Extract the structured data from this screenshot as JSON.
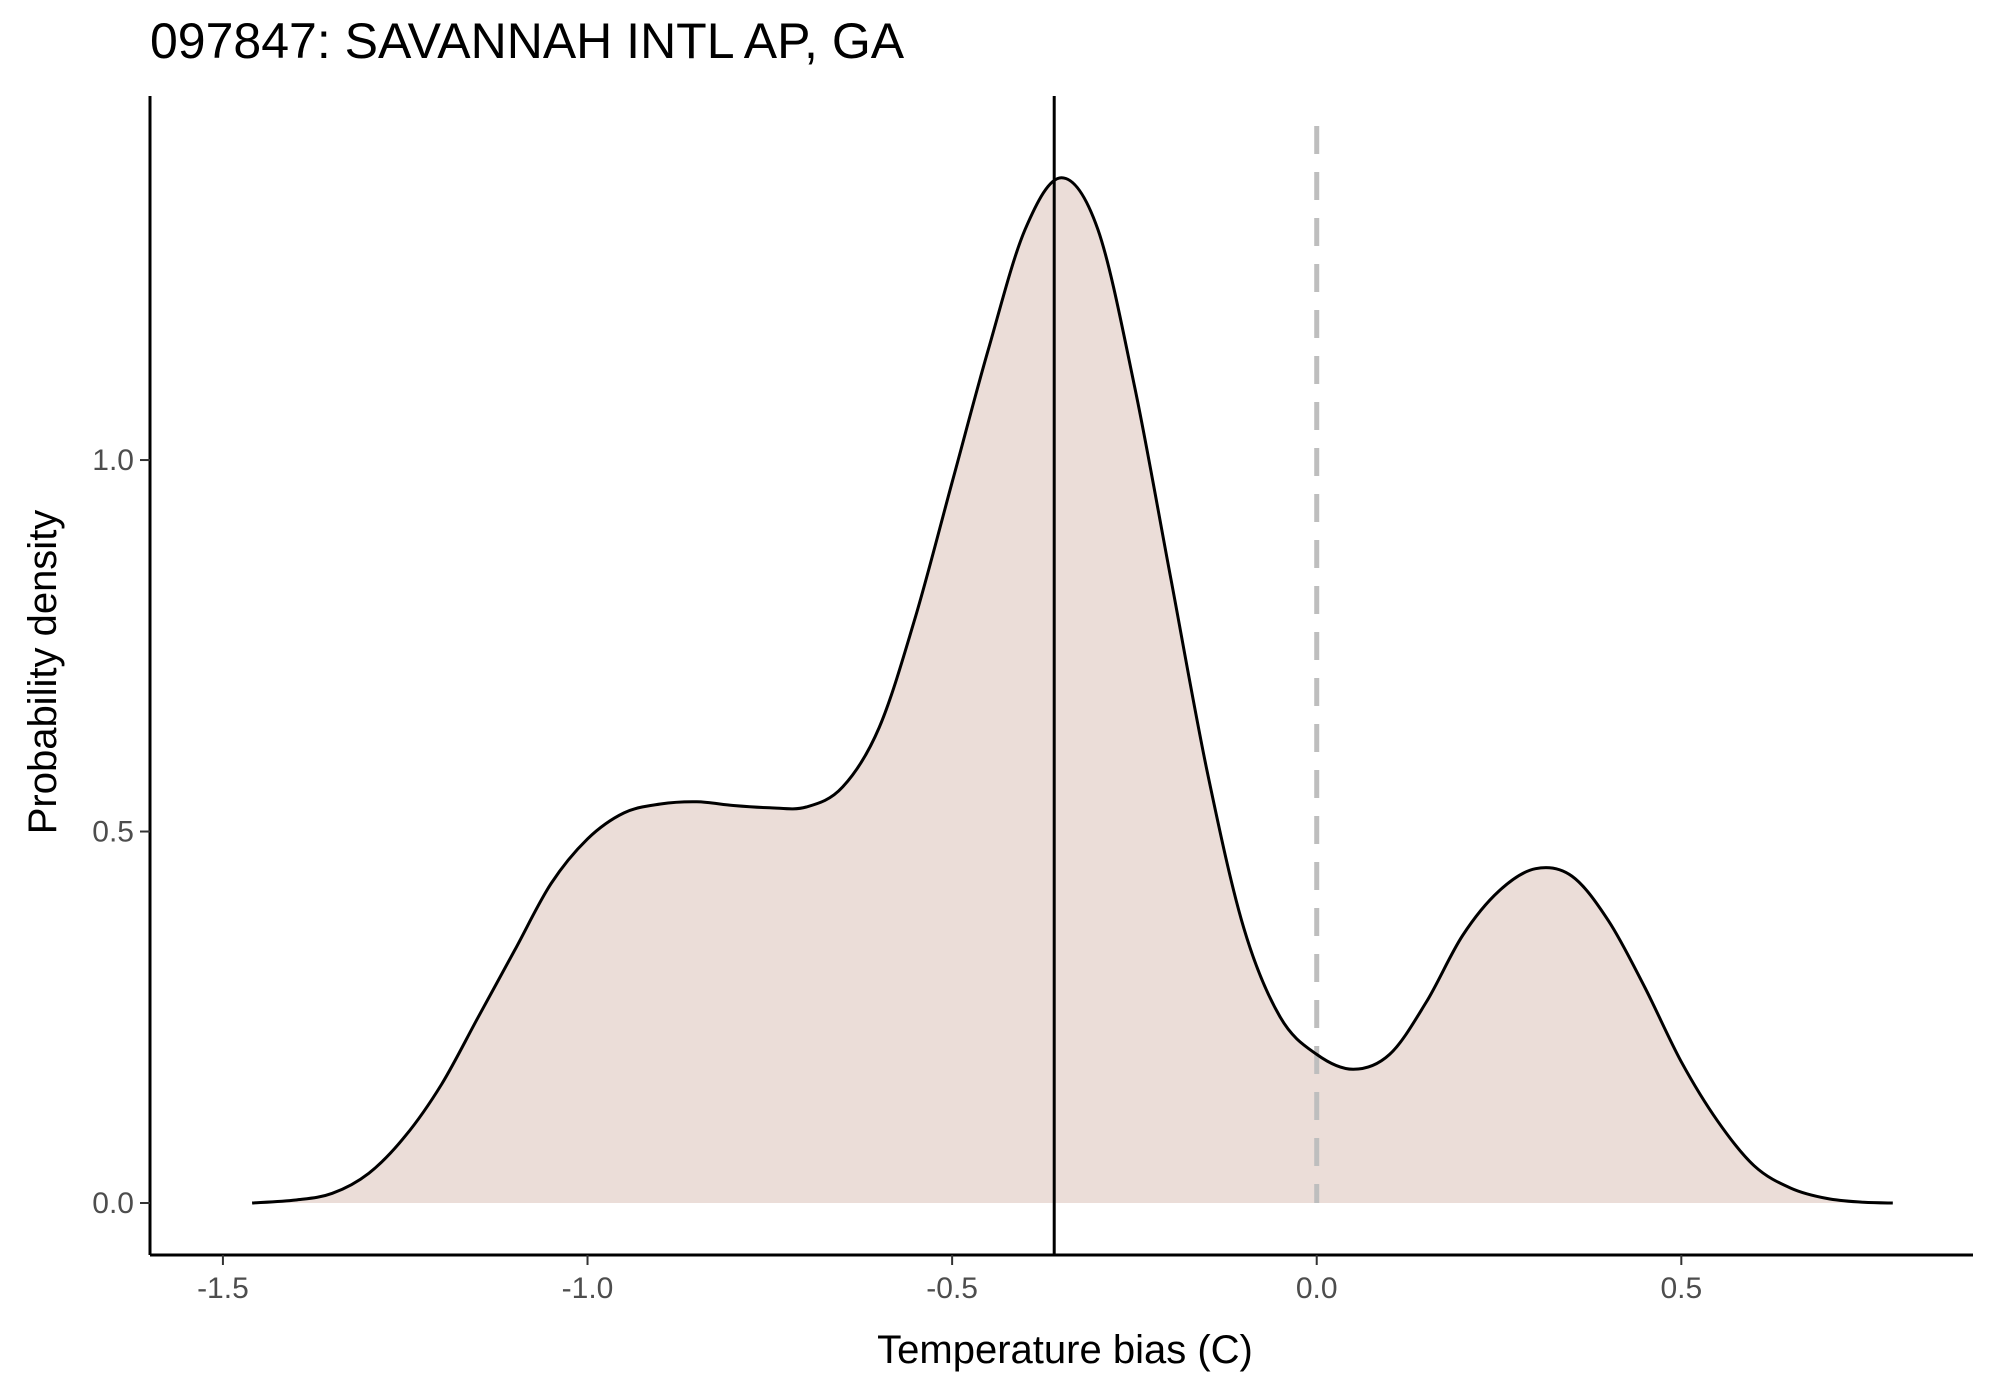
{
  "chart_data": {
    "type": "area",
    "title": "097847: SAVANNAH INTL AP, GA",
    "xlabel": "Temperature bias (C)",
    "ylabel": "Probability density",
    "xlim": [
      -1.6,
      0.9
    ],
    "ylim": [
      -0.07,
      1.49
    ],
    "x_ticks": [
      -1.5,
      -1.0,
      -0.5,
      0.0,
      0.5
    ],
    "x_tick_labels": [
      "-1.5",
      "-1.0",
      "-0.5",
      "0.0",
      "0.5"
    ],
    "y_ticks": [
      0.0,
      0.5,
      1.0
    ],
    "y_tick_labels": [
      "0.0",
      "0.5",
      "1.0"
    ],
    "grid": false,
    "fill_color": "#ebddd8",
    "line_color": "#000000",
    "density": {
      "x": [
        -1.46,
        -1.4,
        -1.35,
        -1.3,
        -1.25,
        -1.2,
        -1.15,
        -1.1,
        -1.05,
        -1.0,
        -0.95,
        -0.9,
        -0.85,
        -0.8,
        -0.75,
        -0.7,
        -0.65,
        -0.6,
        -0.55,
        -0.5,
        -0.45,
        -0.4,
        -0.35,
        -0.3,
        -0.25,
        -0.2,
        -0.15,
        -0.1,
        -0.05,
        0.0,
        0.05,
        0.1,
        0.15,
        0.2,
        0.25,
        0.3,
        0.35,
        0.4,
        0.45,
        0.5,
        0.55,
        0.6,
        0.65,
        0.7,
        0.75,
        0.79
      ],
      "y": [
        0.0,
        0.004,
        0.013,
        0.04,
        0.09,
        0.16,
        0.25,
        0.34,
        0.43,
        0.49,
        0.525,
        0.537,
        0.54,
        0.535,
        0.532,
        0.533,
        0.56,
        0.64,
        0.79,
        0.97,
        1.15,
        1.31,
        1.38,
        1.31,
        1.1,
        0.84,
        0.58,
        0.37,
        0.25,
        0.2,
        0.18,
        0.2,
        0.27,
        0.36,
        0.42,
        0.45,
        0.44,
        0.38,
        0.29,
        0.19,
        0.11,
        0.05,
        0.02,
        0.006,
        0.001,
        0.0
      ]
    },
    "vlines": [
      {
        "x": -0.36,
        "style": "solid",
        "color": "#000000"
      },
      {
        "x": 0.0,
        "style": "dashed",
        "color": "#bebebe"
      }
    ]
  }
}
